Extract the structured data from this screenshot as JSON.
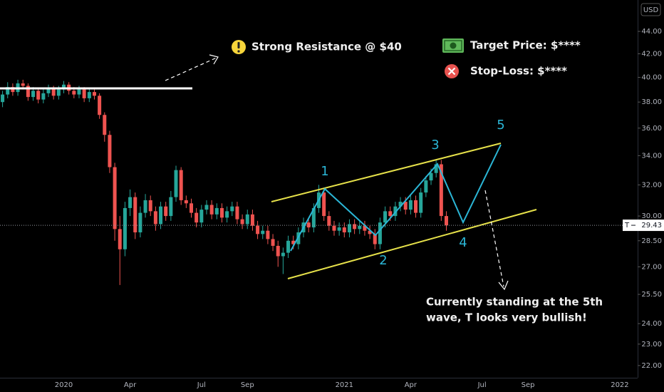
{
  "chart_data": {
    "type": "candlestick",
    "symbol": "T",
    "currency": "USD",
    "log_scale": true,
    "up_color": "#26a69a",
    "down_color": "#ef5350",
    "ylim": [
      21.45,
      46.96
    ],
    "yticks": [
      {
        "value": 22,
        "label": "22.00"
      },
      {
        "value": 23,
        "label": "23.00"
      },
      {
        "value": 24,
        "label": "24.00"
      },
      {
        "value": 25.5,
        "label": "25.50"
      },
      {
        "value": 27,
        "label": "27.00"
      },
      {
        "value": 28.5,
        "label": "28.50"
      },
      {
        "value": 30,
        "label": "30.00"
      },
      {
        "value": 32,
        "label": "32.00"
      },
      {
        "value": 34,
        "label": "34.00"
      },
      {
        "value": 36,
        "label": "36.00"
      },
      {
        "value": 38,
        "label": "38.00"
      },
      {
        "value": 40,
        "label": "40.00"
      },
      {
        "value": 42,
        "label": "42.00"
      },
      {
        "value": 44,
        "label": "44.00"
      }
    ],
    "categories": [
      null,
      null,
      null,
      null,
      null,
      null,
      null,
      null,
      null,
      null,
      null,
      null,
      "2020",
      null,
      null,
      null,
      null,
      null,
      null,
      null,
      null,
      null,
      null,
      null,
      null,
      "Apr",
      null,
      null,
      null,
      null,
      null,
      null,
      null,
      null,
      null,
      null,
      null,
      null,
      null,
      "Jul",
      null,
      null,
      null,
      null,
      null,
      null,
      null,
      null,
      "Sep",
      null,
      null,
      null,
      null,
      null,
      null,
      null,
      null,
      null,
      null,
      null,
      null,
      null,
      null,
      null,
      null,
      null,
      null,
      "2021",
      null,
      null,
      null,
      null,
      null,
      null,
      null,
      null,
      null,
      null,
      null,
      null,
      "Apr",
      null,
      null,
      null,
      null,
      null,
      null,
      null,
      null,
      null,
      null,
      null,
      null,
      null,
      "Jul",
      null,
      null,
      null,
      null,
      null,
      null,
      null,
      null,
      "Sep",
      null,
      null,
      null,
      null,
      null,
      null,
      null,
      null,
      null,
      null,
      null,
      null,
      null,
      null,
      null,
      null,
      null,
      "2022",
      null,
      null,
      null
    ],
    "open": [
      38.0,
      38.6,
      39.2,
      38.8,
      39.5,
      39.3,
      38.4,
      38.9,
      38.2,
      38.7,
      39.1,
      38.5,
      39.0,
      39.4,
      38.9,
      38.6,
      39.0,
      38.3,
      38.8,
      38.5,
      37.0,
      35.5,
      33.2,
      29.2,
      28.0,
      30.5,
      31.2,
      29.0,
      30.2,
      31.0,
      30.3,
      29.5,
      30.6,
      30.0,
      31.2,
      33.0,
      31.0,
      30.8,
      30.2,
      29.6,
      30.4,
      30.7,
      30.1,
      30.5,
      29.9,
      30.3,
      30.6,
      29.8,
      29.5,
      30.1,
      29.4,
      28.9,
      29.1,
      28.6,
      28.2,
      27.6,
      27.8,
      28.5,
      28.3,
      29.0,
      29.6,
      29.3,
      30.5,
      31.5,
      30.0,
      29.4,
      29.1,
      29.3,
      29.0,
      29.5,
      29.2,
      29.4,
      29.1,
      28.9,
      28.3,
      29.6,
      30.3,
      30.0,
      30.6,
      30.9,
      30.4,
      31.0,
      30.2,
      31.5,
      32.3,
      32.8,
      33.4,
      30.0,
      null,
      null,
      null,
      null,
      null,
      null,
      null,
      null,
      null,
      null,
      null,
      null,
      null,
      null,
      null,
      null,
      null,
      null,
      null,
      null,
      null,
      null,
      null,
      null,
      null,
      null,
      null,
      null,
      null,
      null,
      null,
      null,
      null,
      null,
      null,
      null,
      null
    ],
    "high": [
      38.9,
      39.6,
      39.5,
      39.8,
      39.8,
      39.5,
      39.2,
      39.1,
      39.0,
      39.4,
      39.3,
      39.3,
      39.7,
      39.6,
      39.2,
      39.3,
      39.2,
      39.1,
      39.0,
      38.7,
      37.2,
      35.8,
      33.5,
      30.0,
      30.9,
      31.7,
      31.5,
      30.6,
      31.4,
      31.3,
      30.6,
      30.9,
      30.9,
      31.6,
      33.3,
      33.2,
      31.3,
      31.1,
      30.5,
      30.7,
      31.0,
      31.0,
      30.8,
      30.8,
      30.6,
      30.9,
      30.9,
      30.1,
      30.4,
      30.4,
      29.7,
      29.4,
      29.4,
      28.9,
      28.5,
      28.1,
      28.8,
      28.8,
      29.3,
      29.9,
      29.9,
      30.8,
      32.0,
      31.8,
      30.3,
      29.7,
      29.6,
      29.6,
      29.8,
      29.8,
      29.7,
      29.7,
      29.4,
      29.2,
      29.9,
      30.6,
      30.6,
      30.9,
      31.2,
      31.2,
      31.3,
      31.3,
      31.8,
      32.6,
      33.1,
      33.7,
      33.7,
      30.3,
      null,
      null,
      null,
      null,
      null,
      null,
      null,
      null,
      null,
      null,
      null,
      null,
      null,
      null,
      null,
      null,
      null,
      null,
      null,
      null,
      null,
      null,
      null,
      null,
      null,
      null,
      null,
      null,
      null,
      null,
      null,
      null,
      null,
      null,
      null,
      null,
      null
    ],
    "low": [
      37.6,
      38.3,
      38.5,
      38.5,
      39.0,
      38.1,
      38.1,
      37.9,
      37.9,
      38.4,
      38.2,
      38.2,
      38.7,
      38.6,
      38.3,
      38.3,
      38.0,
      38.0,
      38.2,
      36.7,
      35.0,
      32.8,
      28.5,
      26.0,
      27.6,
      30.0,
      28.6,
      28.7,
      29.9,
      30.0,
      29.1,
      29.2,
      29.7,
      29.7,
      30.9,
      30.7,
      30.5,
      29.9,
      29.3,
      29.3,
      30.1,
      29.8,
      29.8,
      29.6,
      29.6,
      30.0,
      29.5,
      29.2,
      29.2,
      29.1,
      28.6,
      28.6,
      28.3,
      27.9,
      27.0,
      26.6,
      27.5,
      28.0,
      28.0,
      28.7,
      29.0,
      29.0,
      30.2,
      29.7,
      29.1,
      28.8,
      28.8,
      28.7,
      28.7,
      28.9,
      28.9,
      28.8,
      28.6,
      28.0,
      28.0,
      29.3,
      29.7,
      29.7,
      30.3,
      30.1,
      30.1,
      29.9,
      29.9,
      31.2,
      32.0,
      32.5,
      29.7,
      29.1,
      null,
      null,
      null,
      null,
      null,
      null,
      null,
      null,
      null,
      null,
      null,
      null,
      null,
      null,
      null,
      null,
      null,
      null,
      null,
      null,
      null,
      null,
      null,
      null,
      null,
      null,
      null,
      null,
      null,
      null,
      null,
      null,
      null,
      null,
      null,
      null,
      null
    ],
    "close": [
      38.6,
      39.2,
      38.8,
      39.5,
      39.3,
      38.4,
      38.9,
      38.2,
      38.7,
      39.1,
      38.5,
      39.0,
      39.4,
      38.9,
      38.6,
      39.0,
      38.3,
      38.8,
      38.5,
      37.0,
      35.5,
      33.2,
      29.2,
      28.0,
      30.5,
      31.2,
      29.0,
      30.2,
      31.0,
      30.3,
      29.5,
      30.6,
      30.0,
      31.2,
      33.0,
      31.0,
      30.8,
      30.2,
      29.6,
      30.4,
      30.7,
      30.1,
      30.5,
      29.9,
      30.3,
      30.6,
      29.8,
      29.5,
      30.1,
      29.4,
      28.9,
      29.1,
      28.6,
      28.2,
      27.6,
      27.8,
      28.5,
      28.3,
      29.0,
      29.6,
      29.3,
      30.5,
      31.5,
      30.0,
      29.4,
      29.1,
      29.3,
      29.0,
      29.5,
      29.2,
      29.4,
      29.1,
      28.9,
      28.3,
      29.6,
      30.3,
      30.0,
      30.6,
      30.9,
      30.4,
      31.0,
      30.2,
      31.5,
      32.3,
      32.8,
      33.4,
      30.0,
      29.43,
      null,
      null,
      null,
      null,
      null,
      null,
      null,
      null,
      null,
      null,
      null,
      null,
      null,
      null,
      null,
      null,
      null,
      null,
      null,
      null,
      null,
      null,
      null,
      null,
      null,
      null,
      null,
      null,
      null,
      null,
      null,
      null,
      null,
      null,
      null,
      null,
      null
    ],
    "annotations": {
      "resistance": "Strong Resistance @ $40",
      "target": "Target Price: $****",
      "stop_loss": "Stop-Loss: $****",
      "note": [
        "Currently standing at the 5th",
        "wave, T looks very bullish!"
      ],
      "waves": [
        "1",
        "2",
        "3",
        "4",
        "5"
      ]
    }
  }
}
